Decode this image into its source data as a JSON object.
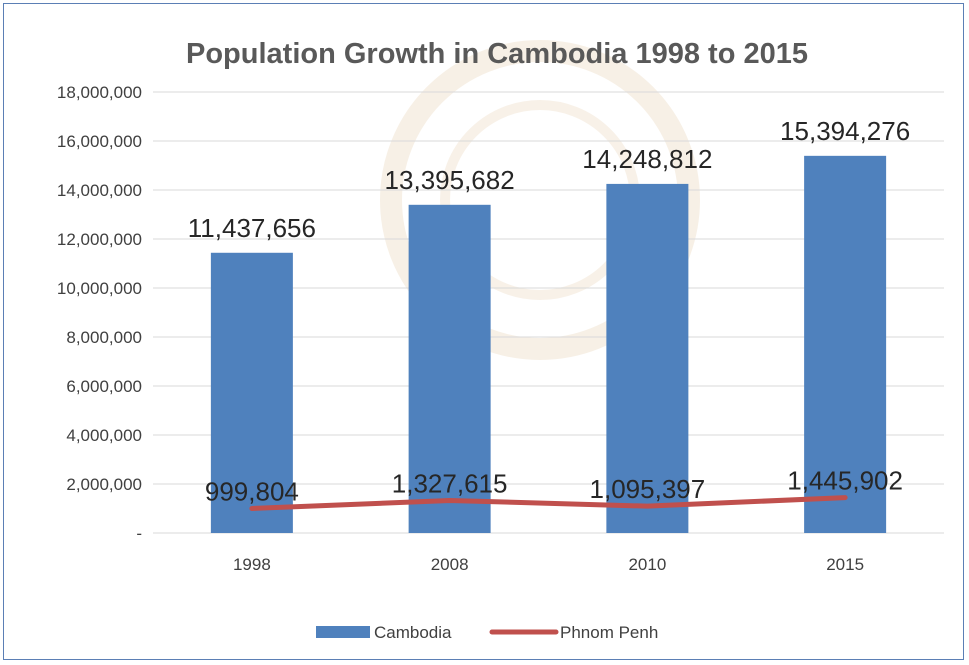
{
  "chart_data": {
    "type": "bar",
    "title": "Population Growth in Cambodia 1998 to 2015",
    "categories": [
      "1998",
      "2008",
      "2010",
      "2015"
    ],
    "series": [
      {
        "name": "Cambodia",
        "kind": "bar",
        "values": [
          11437656,
          13395682,
          14248812,
          15394276
        ],
        "labels": [
          "11,437,656",
          "13,395,682",
          "14,248,812",
          "15,394,276"
        ],
        "color": "#4f81bd"
      },
      {
        "name": "Phnom Penh",
        "kind": "line",
        "values": [
          999804,
          1327615,
          1095397,
          1445902
        ],
        "labels": [
          "999,804",
          "1,327,615",
          "1,095,397",
          "1,445,902"
        ],
        "color": "#c0504d"
      }
    ],
    "ylim": [
      0,
      18000000
    ],
    "yticks": [
      {
        "value": 0,
        "label": "-"
      },
      {
        "value": 2000000,
        "label": "2,000,000"
      },
      {
        "value": 4000000,
        "label": "4,000,000"
      },
      {
        "value": 6000000,
        "label": "6,000,000"
      },
      {
        "value": 8000000,
        "label": "8,000,000"
      },
      {
        "value": 10000000,
        "label": "10,000,000"
      },
      {
        "value": 12000000,
        "label": "12,000,000"
      },
      {
        "value": 14000000,
        "label": "14,000,000"
      },
      {
        "value": 16000000,
        "label": "16,000,000"
      },
      {
        "value": 18000000,
        "label": "18,000,000"
      }
    ],
    "grid": true,
    "legend": "bottom",
    "gridColor": "#d9d9d9"
  }
}
